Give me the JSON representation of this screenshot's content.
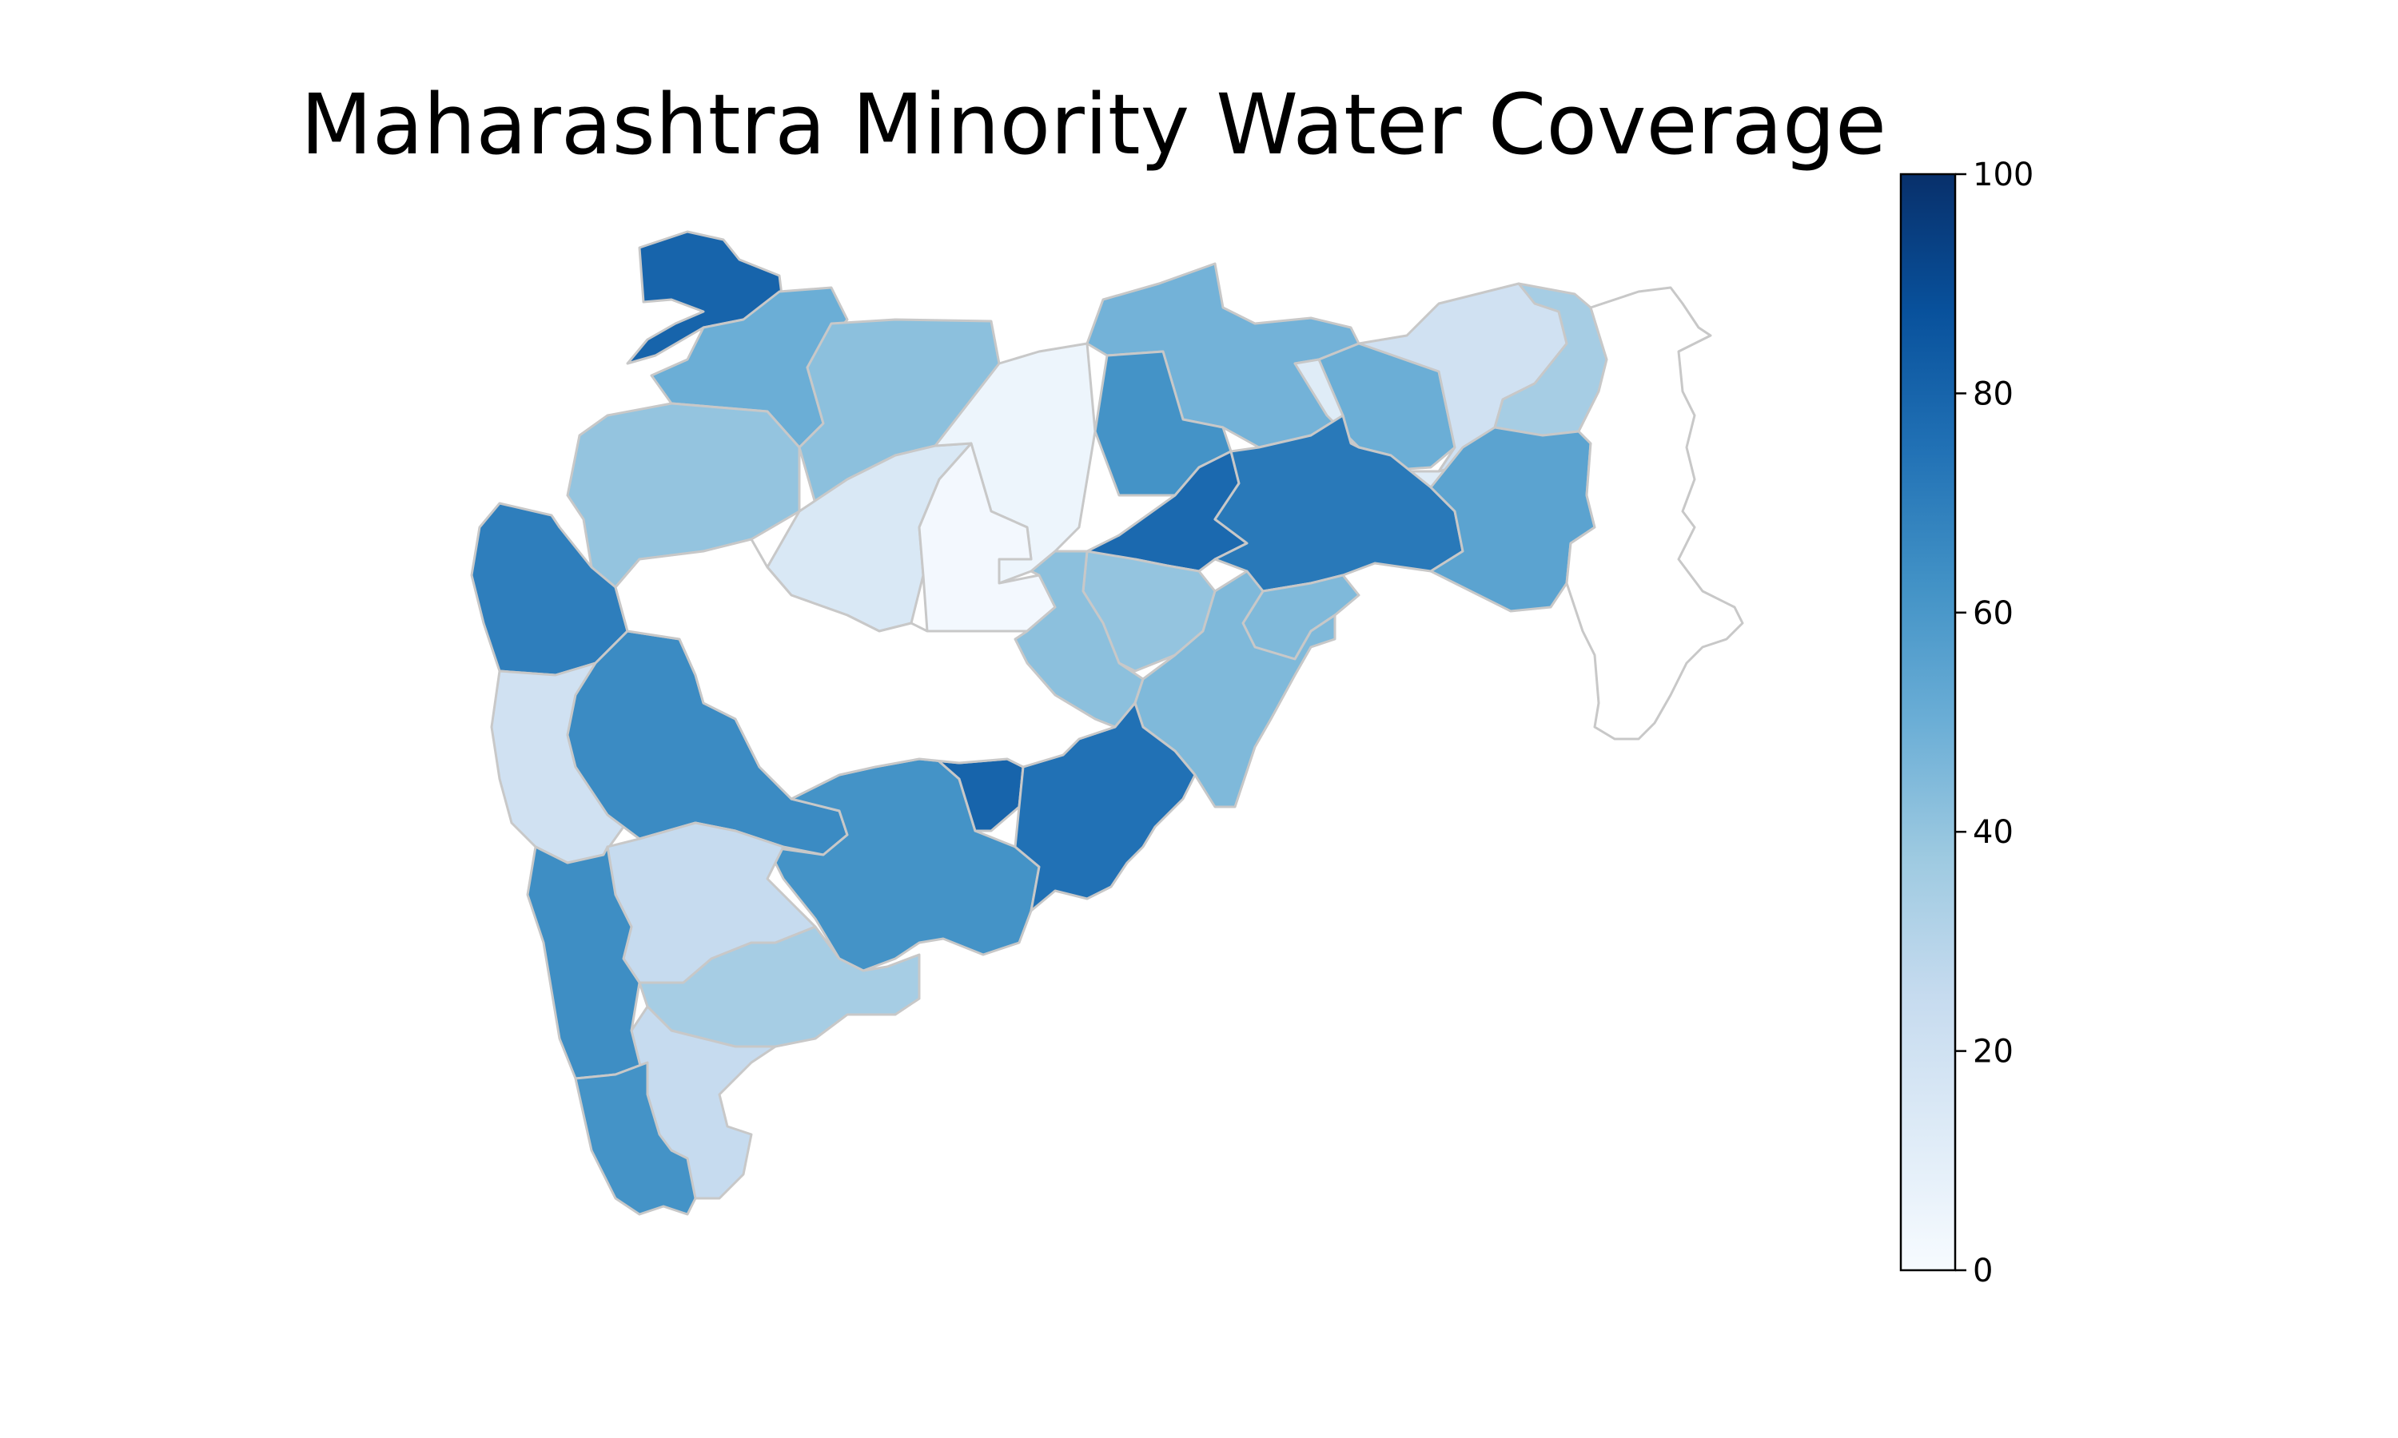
{
  "title": "Maharashtra Minority Water Coverage",
  "colormap": {
    "name": "Blues",
    "min": 0,
    "max": 100,
    "stops": [
      "#f7fbff",
      "#deebf7",
      "#c6dbef",
      "#9ecae1",
      "#6baed6",
      "#4292c6",
      "#2171b5",
      "#08519c",
      "#08306b"
    ],
    "ticks": [
      "0",
      "20",
      "40",
      "60",
      "80",
      "100"
    ],
    "no_data_color": "#ffffff",
    "border_color": "#c8c8c8"
  },
  "chart_data": {
    "type": "choropleth",
    "colorbar": {
      "range": [
        0,
        100
      ],
      "ticks": [
        0,
        20,
        40,
        60,
        80,
        100
      ],
      "placement": "right"
    },
    "regions": [
      {
        "id": "r01",
        "value": 80
      },
      {
        "id": "r02",
        "value": 50
      },
      {
        "id": "r03",
        "value": 42
      },
      {
        "id": "r04",
        "value": 40
      },
      {
        "id": "r05",
        "value": 70
      },
      {
        "id": "r06",
        "value": 15
      },
      {
        "id": "r07",
        "value": 5
      },
      {
        "id": "r08",
        "value": 2
      },
      {
        "id": "r09",
        "value": 48
      },
      {
        "id": "r10",
        "value": 62
      },
      {
        "id": "r11",
        "value": 50
      },
      {
        "id": "r12",
        "value": 20
      },
      {
        "id": "r13",
        "value": 12
      },
      {
        "id": "r14",
        "value": 35
      },
      {
        "id": "r15",
        "value": 78
      },
      {
        "id": "r16",
        "value": 72
      },
      {
        "id": "r17",
        "value": 55
      },
      {
        "id": "r18",
        "value": 45
      },
      {
        "id": "r19",
        "value": 40
      },
      {
        "id": "r20",
        "value": 42
      },
      {
        "id": "r21",
        "value": 45
      },
      {
        "id": "r22",
        "value": 20
      },
      {
        "id": "r23",
        "value": 65
      },
      {
        "id": "r24",
        "value": 62
      },
      {
        "id": "r25",
        "value": 80
      },
      {
        "id": "r26",
        "value": 75
      },
      {
        "id": "r27",
        "value": 25
      },
      {
        "id": "r28",
        "value": 64
      },
      {
        "id": "r29",
        "value": 35
      },
      {
        "id": "r30",
        "value": 25
      },
      {
        "id": "r31",
        "value": 62
      },
      {
        "id": "r32",
        "value": null
      },
      {
        "id": "r33",
        "value": null
      }
    ]
  }
}
